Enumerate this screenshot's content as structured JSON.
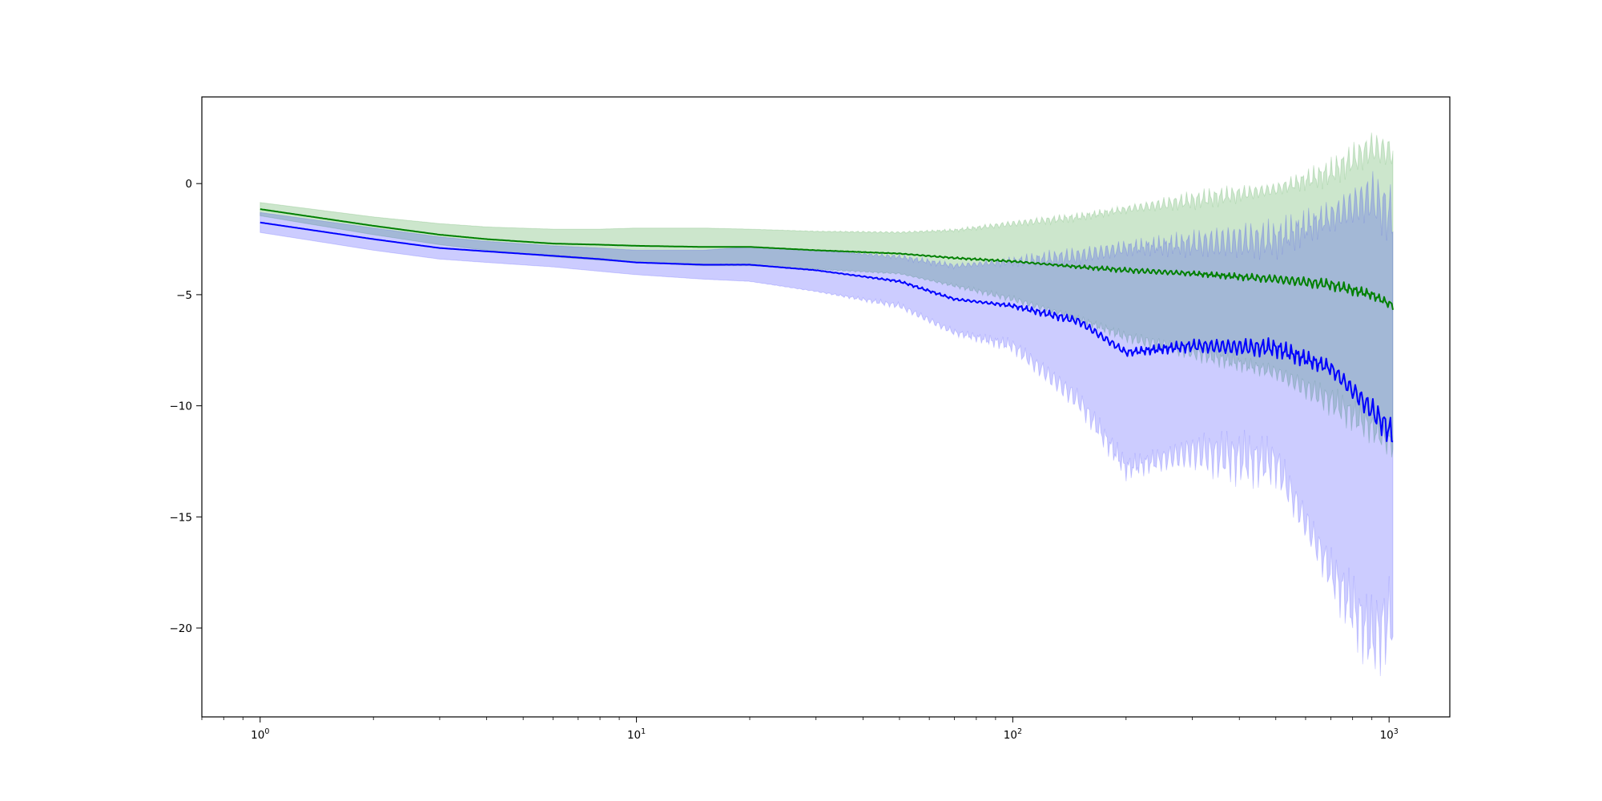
{
  "chart_data": {
    "type": "line",
    "title": "",
    "xlabel": "",
    "ylabel": "",
    "xscale": "log",
    "xlim": [
      0.7,
      1450
    ],
    "ylim": [
      -24,
      3.9
    ],
    "x_tick_labels": [
      {
        "value": 1,
        "base": "10",
        "exp": "0"
      },
      {
        "value": 10,
        "base": "10",
        "exp": "1"
      },
      {
        "value": 100,
        "base": "10",
        "exp": "2"
      },
      {
        "value": 1000,
        "base": "10",
        "exp": "3"
      }
    ],
    "y_ticks": [
      0,
      -5,
      -10,
      -15,
      -20
    ],
    "y_tick_labels": [
      "0",
      "−5",
      "−10",
      "−15",
      "−20"
    ],
    "grid": false,
    "legend": "none",
    "series": [
      {
        "color": "#008000",
        "band_color": "#008000",
        "band_alpha": 0.2,
        "mean": [
          [
            1,
            -1.15
          ],
          [
            2,
            -1.9
          ],
          [
            3,
            -2.3
          ],
          [
            4,
            -2.5
          ],
          [
            6,
            -2.7
          ],
          [
            8,
            -2.75
          ],
          [
            10,
            -2.8
          ],
          [
            15,
            -2.85
          ],
          [
            20,
            -2.85
          ],
          [
            30,
            -3.0
          ],
          [
            50,
            -3.15
          ],
          [
            70,
            -3.35
          ],
          [
            100,
            -3.5
          ],
          [
            150,
            -3.75
          ],
          [
            200,
            -3.9
          ],
          [
            300,
            -4.05
          ],
          [
            500,
            -4.3
          ],
          [
            700,
            -4.55
          ],
          [
            900,
            -5.0
          ],
          [
            1024,
            -5.5
          ]
        ],
        "upper": [
          [
            1,
            -0.85
          ],
          [
            2,
            -1.5
          ],
          [
            3,
            -1.8
          ],
          [
            4,
            -1.95
          ],
          [
            6,
            -2.05
          ],
          [
            8,
            -2.05
          ],
          [
            10,
            -2.0
          ],
          [
            15,
            -2.0
          ],
          [
            20,
            -2.05
          ],
          [
            30,
            -2.15
          ],
          [
            50,
            -2.2
          ],
          [
            70,
            -2.1
          ],
          [
            100,
            -1.8
          ],
          [
            150,
            -1.5
          ],
          [
            200,
            -1.15
          ],
          [
            300,
            -0.75
          ],
          [
            500,
            -0.25
          ],
          [
            700,
            0.5
          ],
          [
            900,
            1.6
          ],
          [
            1024,
            1.4
          ]
        ],
        "lower": [
          [
            1,
            -1.45
          ],
          [
            2,
            -2.3
          ],
          [
            3,
            -2.75
          ],
          [
            4,
            -3.0
          ],
          [
            6,
            -3.3
          ],
          [
            8,
            -3.45
          ],
          [
            10,
            -3.55
          ],
          [
            15,
            -3.7
          ],
          [
            20,
            -3.7
          ],
          [
            30,
            -3.85
          ],
          [
            50,
            -4.05
          ],
          [
            70,
            -4.6
          ],
          [
            100,
            -5.2
          ],
          [
            150,
            -6.1
          ],
          [
            200,
            -6.9
          ],
          [
            300,
            -7.6
          ],
          [
            500,
            -8.5
          ],
          [
            700,
            -9.8
          ],
          [
            900,
            -11.0
          ],
          [
            1024,
            -11.8
          ]
        ]
      },
      {
        "color": "#0000ff",
        "band_color": "#0000ff",
        "band_alpha": 0.2,
        "mean": [
          [
            1,
            -1.75
          ],
          [
            2,
            -2.5
          ],
          [
            3,
            -2.9
          ],
          [
            4,
            -3.05
          ],
          [
            6,
            -3.25
          ],
          [
            8,
            -3.4
          ],
          [
            10,
            -3.55
          ],
          [
            15,
            -3.65
          ],
          [
            20,
            -3.65
          ],
          [
            30,
            -3.9
          ],
          [
            50,
            -4.4
          ],
          [
            70,
            -5.2
          ],
          [
            100,
            -5.5
          ],
          [
            150,
            -6.2
          ],
          [
            200,
            -7.6
          ],
          [
            300,
            -7.3
          ],
          [
            500,
            -7.4
          ],
          [
            700,
            -8.3
          ],
          [
            900,
            -10.2
          ],
          [
            1024,
            -11.3
          ]
        ],
        "upper": [
          [
            1,
            -1.3
          ],
          [
            2,
            -2.0
          ],
          [
            3,
            -2.4
          ],
          [
            4,
            -2.6
          ],
          [
            6,
            -2.8
          ],
          [
            8,
            -2.9
          ],
          [
            10,
            -3.0
          ],
          [
            15,
            -3.0
          ],
          [
            20,
            -2.85
          ],
          [
            30,
            -3.0
          ],
          [
            50,
            -3.3
          ],
          [
            70,
            -3.7
          ],
          [
            100,
            -3.5
          ],
          [
            150,
            -3.25
          ],
          [
            200,
            -2.9
          ],
          [
            300,
            -2.7
          ],
          [
            500,
            -2.5
          ],
          [
            700,
            -1.5
          ],
          [
            900,
            -0.6
          ],
          [
            1024,
            -1.5
          ]
        ],
        "lower": [
          [
            1,
            -2.2
          ],
          [
            2,
            -3.0
          ],
          [
            3,
            -3.4
          ],
          [
            4,
            -3.55
          ],
          [
            6,
            -3.75
          ],
          [
            8,
            -3.95
          ],
          [
            10,
            -4.1
          ],
          [
            15,
            -4.3
          ],
          [
            20,
            -4.4
          ],
          [
            30,
            -4.85
          ],
          [
            50,
            -5.5
          ],
          [
            70,
            -6.7
          ],
          [
            100,
            -7.3
          ],
          [
            150,
            -9.8
          ],
          [
            200,
            -12.8
          ],
          [
            300,
            -12.1
          ],
          [
            500,
            -12.6
          ],
          [
            700,
            -17.5
          ],
          [
            900,
            -20.5
          ],
          [
            1024,
            -19.5
          ]
        ]
      }
    ]
  }
}
